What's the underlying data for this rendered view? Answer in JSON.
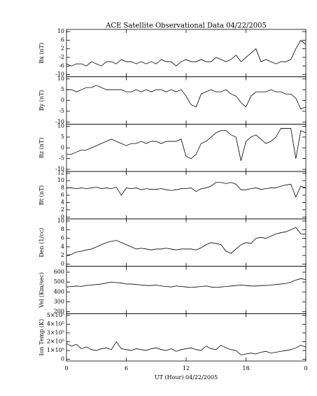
{
  "chart_data": [
    {
      "type": "line",
      "title": "ACE Satellite Observational Data   04/22/2005",
      "ylabel": "Bx (nT)",
      "color": "#000000",
      "xlim": [
        0,
        24
      ],
      "ylim": [
        -11,
        11
      ],
      "yticks": [
        -10,
        -6,
        -2,
        2,
        6,
        10
      ],
      "x": [
        0,
        0.5,
        1,
        1.5,
        2,
        2.5,
        3,
        3.5,
        4,
        4.5,
        5,
        5.5,
        6,
        6.5,
        7,
        7.5,
        8,
        8.5,
        9,
        9.5,
        10,
        10.5,
        11,
        11.5,
        12,
        12.5,
        13,
        13.5,
        14,
        14.5,
        15,
        15.5,
        16,
        16.5,
        17,
        17.5,
        18,
        18.5,
        19,
        19.5,
        20,
        20.5,
        21,
        21.5,
        22,
        22.5,
        23,
        23.5,
        24
      ],
      "values": [
        -5,
        -6,
        -5,
        -5,
        -6,
        -4,
        -5,
        -6,
        -4,
        -4,
        -5,
        -3,
        -4,
        -4,
        -5,
        -4,
        -5,
        -4,
        -5,
        -3,
        -4,
        -4,
        -6,
        -4,
        -3,
        -4,
        -4,
        -3,
        -4,
        -4,
        -2,
        -3,
        -4,
        -3,
        -1,
        -4,
        -2,
        0,
        2,
        -4,
        -3,
        -4,
        -5,
        -4,
        -4,
        -3,
        2,
        6,
        4
      ]
    },
    {
      "type": "line",
      "ylabel": "By (nT)",
      "color": "#000000",
      "xlim": [
        0,
        24
      ],
      "ylim": [
        -11,
        11
      ],
      "yticks": [
        -10,
        -5,
        0,
        5,
        10
      ],
      "x": [
        0,
        0.5,
        1,
        1.5,
        2,
        2.5,
        3,
        3.5,
        4,
        4.5,
        5,
        5.5,
        6,
        6.5,
        7,
        7.5,
        8,
        8.5,
        9,
        9.5,
        10,
        10.5,
        11,
        11.5,
        12,
        12.5,
        13,
        13.5,
        14,
        14.5,
        15,
        15.5,
        16,
        16.5,
        17,
        17.5,
        18,
        18.5,
        19,
        19.5,
        20,
        20.5,
        21,
        21.5,
        22,
        22.5,
        23,
        23.5,
        24
      ],
      "values": [
        5,
        5,
        4,
        5,
        6,
        6,
        7,
        6,
        5,
        5,
        5,
        5,
        4,
        4,
        5,
        4,
        5,
        4,
        5,
        5,
        4,
        5,
        4,
        5,
        2,
        -2,
        -3,
        3,
        4,
        5,
        4,
        4,
        5,
        3,
        2,
        -1,
        -3,
        2,
        4,
        4,
        4,
        5,
        4,
        4,
        3,
        3,
        1,
        -4,
        -3
      ]
    },
    {
      "type": "line",
      "ylabel": "Bz (nT)",
      "color": "#000000",
      "xlim": [
        0,
        24
      ],
      "ylim": [
        -11,
        11
      ],
      "yticks": [
        -10,
        -5,
        0,
        5,
        10
      ],
      "x": [
        0,
        0.5,
        1,
        1.5,
        2,
        2.5,
        3,
        3.5,
        4,
        4.5,
        5,
        5.5,
        6,
        6.5,
        7,
        7.5,
        8,
        8.5,
        9,
        9.5,
        10,
        10.5,
        11,
        11.5,
        12,
        12.5,
        13,
        13.5,
        14,
        14.5,
        15,
        15.5,
        16,
        16.5,
        17,
        17.5,
        18,
        18.5,
        19,
        19.5,
        20,
        20.5,
        21,
        21.5,
        22,
        22.5,
        23,
        23.5,
        24
      ],
      "values": [
        -3,
        -3,
        -2,
        -1,
        -1,
        0,
        1,
        2,
        3,
        4,
        3,
        2,
        1,
        2,
        2,
        3,
        2,
        3,
        3,
        2,
        3,
        3,
        3,
        4,
        -4,
        -5,
        -3,
        2,
        3,
        5,
        7,
        8,
        8,
        6,
        5,
        -6,
        3,
        5,
        6,
        4,
        2,
        3,
        5,
        9,
        9,
        9,
        -5,
        8,
        7
      ]
    },
    {
      "type": "line",
      "ylabel": "Bt (nT)",
      "color": "#000000",
      "xlim": [
        0,
        24
      ],
      "ylim": [
        -0.5,
        12.5
      ],
      "yticks": [
        0,
        2,
        4,
        6,
        8,
        10,
        12
      ],
      "x": [
        0,
        0.5,
        1,
        1.5,
        2,
        2.5,
        3,
        3.5,
        4,
        4.5,
        5,
        5.5,
        6,
        6.5,
        7,
        7.5,
        8,
        8.5,
        9,
        9.5,
        10,
        10.5,
        11,
        11.5,
        12,
        12.5,
        13,
        13.5,
        14,
        14.5,
        15,
        15.5,
        16,
        16.5,
        17,
        17.5,
        18,
        18.5,
        19,
        19.5,
        20,
        20.5,
        21,
        21.5,
        22,
        22.5,
        23,
        23.5,
        24
      ],
      "values": [
        8,
        8,
        7.8,
        8,
        7.8,
        8,
        8.2,
        7.8,
        8,
        7.8,
        8.2,
        6,
        8,
        7.8,
        8,
        7.5,
        7.8,
        7.6,
        7.6,
        7.8,
        7.5,
        7.3,
        7.5,
        7.8,
        7.8,
        8,
        7,
        7.8,
        8,
        8.5,
        9.5,
        9.5,
        9.2,
        9.5,
        9,
        7.5,
        7.5,
        7.8,
        8,
        7.6,
        7.8,
        8,
        8,
        8.5,
        8.8,
        9,
        5.5,
        8.5,
        8
      ]
    },
    {
      "type": "line",
      "ylabel": "Den (1/cc)",
      "color": "#000000",
      "xlim": [
        0,
        24
      ],
      "ylim": [
        -0.5,
        10.5
      ],
      "yticks": [
        0,
        2,
        4,
        6,
        8,
        10
      ],
      "x": [
        0,
        0.5,
        1,
        1.5,
        2,
        2.5,
        3,
        3.5,
        4,
        4.5,
        5,
        5.5,
        6,
        6.5,
        7,
        7.5,
        8,
        8.5,
        9,
        9.5,
        10,
        10.5,
        11,
        11.5,
        12,
        12.5,
        13,
        13.5,
        14,
        14.5,
        15,
        15.5,
        16,
        16.5,
        17,
        17.5,
        18,
        18.5,
        19,
        19.5,
        20,
        20.5,
        21,
        21.5,
        22,
        22.5,
        23,
        23.5,
        24
      ],
      "values": [
        2,
        2.3,
        2.8,
        3,
        3.3,
        3.5,
        4,
        4.5,
        5,
        5.3,
        5.5,
        5,
        4.5,
        4,
        3.5,
        3.7,
        3.5,
        3.3,
        3.5,
        3.5,
        3.7,
        3.5,
        3.3,
        3.5,
        3.5,
        3.5,
        3.3,
        3.8,
        4.5,
        5,
        4.8,
        4.5,
        3,
        2.5,
        3.5,
        4.5,
        5,
        4.8,
        6,
        6.2,
        6,
        6.5,
        7,
        7.3,
        7.5,
        8,
        8.5,
        7,
        7
      ]
    },
    {
      "type": "line",
      "ylabel": "Vel (Km/sec)",
      "color": "#000000",
      "xlim": [
        0,
        24
      ],
      "ylim": [
        180,
        660
      ],
      "yticks": [
        200,
        300,
        400,
        500,
        600
      ],
      "x": [
        0,
        0.5,
        1,
        1.5,
        2,
        2.5,
        3,
        3.5,
        4,
        4.5,
        5,
        5.5,
        6,
        6.5,
        7,
        7.5,
        8,
        8.5,
        9,
        9.5,
        10,
        10.5,
        11,
        11.5,
        12,
        12.5,
        13,
        13.5,
        14,
        14.5,
        15,
        15.5,
        16,
        16.5,
        17,
        17.5,
        18,
        18.5,
        19,
        19.5,
        20,
        20.5,
        21,
        21.5,
        22,
        22.5,
        23,
        23.5,
        24
      ],
      "values": [
        450,
        455,
        460,
        455,
        465,
        470,
        475,
        480,
        490,
        500,
        495,
        490,
        480,
        480,
        475,
        470,
        465,
        465,
        470,
        460,
        455,
        450,
        460,
        455,
        450,
        445,
        450,
        455,
        460,
        450,
        445,
        450,
        455,
        460,
        465,
        470,
        465,
        460,
        460,
        465,
        465,
        470,
        475,
        480,
        485,
        500,
        520,
        535,
        525
      ]
    },
    {
      "type": "line",
      "ylabel": "Ion Temp (K)",
      "xlabel": "UT (Hour)  04/22/2005",
      "color": "#000000",
      "xlim": [
        0,
        24
      ],
      "xticks": [
        0,
        6,
        12,
        18,
        {
          "value": 24,
          "label": "0"
        }
      ],
      "ylim": [
        -20000,
        520000
      ],
      "yticks": [
        0,
        {
          "value": 100000,
          "label": "1×10⁵"
        },
        {
          "value": 200000,
          "label": "2×10⁵"
        },
        {
          "value": 300000,
          "label": "3×10⁵"
        },
        {
          "value": 400000,
          "label": "4×10⁵"
        },
        {
          "value": 500000,
          "label": "5×10⁵"
        }
      ],
      "x": [
        0,
        0.5,
        1,
        1.5,
        2,
        2.5,
        3,
        3.5,
        4,
        4.5,
        5,
        5.5,
        6,
        6.5,
        7,
        7.5,
        8,
        8.5,
        9,
        9.5,
        10,
        10.5,
        11,
        11.5,
        12,
        12.5,
        13,
        13.5,
        14,
        14.5,
        15,
        15.5,
        16,
        16.5,
        17,
        17.5,
        18,
        18.5,
        19,
        19.5,
        20,
        20.5,
        21,
        21.5,
        22,
        22.5,
        23,
        23.5,
        24
      ],
      "values": [
        180000,
        150000,
        170000,
        120000,
        140000,
        110000,
        100000,
        120000,
        130000,
        110000,
        200000,
        120000,
        110000,
        100000,
        120000,
        110000,
        100000,
        120000,
        130000,
        110000,
        100000,
        120000,
        90000,
        110000,
        120000,
        130000,
        110000,
        100000,
        150000,
        120000,
        110000,
        160000,
        130000,
        110000,
        100000,
        50000,
        60000,
        70000,
        60000,
        80000,
        90000,
        70000,
        80000,
        90000,
        100000,
        110000,
        130000,
        160000,
        140000
      ]
    }
  ]
}
